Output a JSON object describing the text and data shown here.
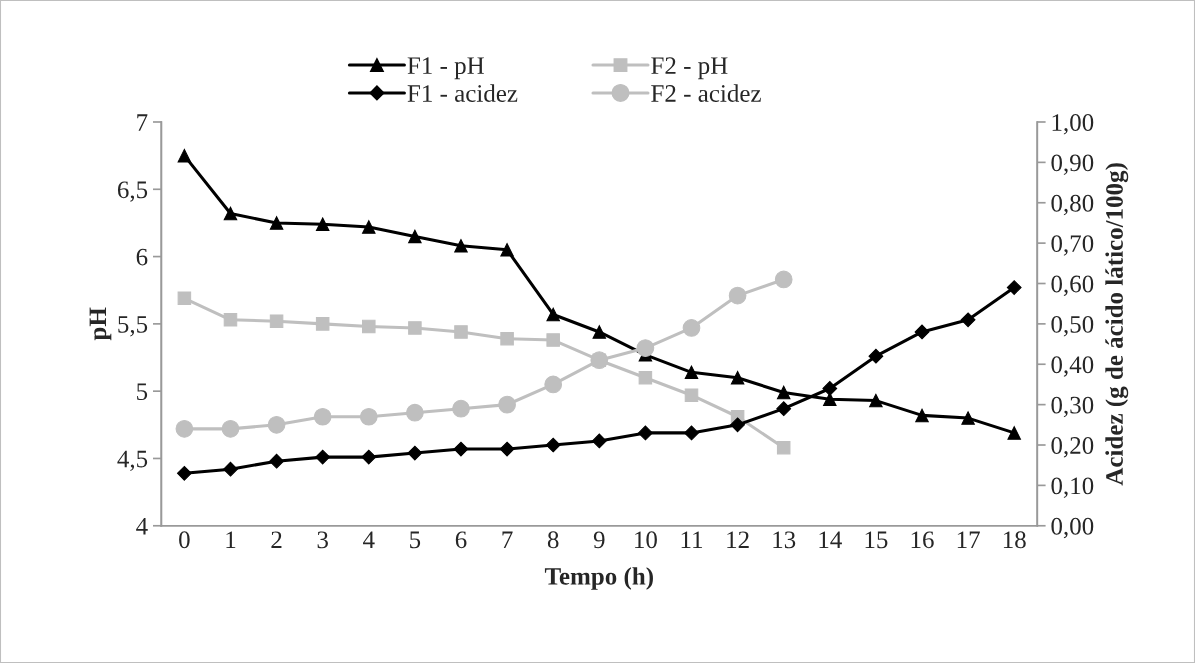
{
  "chart_data": {
    "type": "line",
    "xlabel": "Tempo (h)",
    "ylabel": "pH",
    "y2label": "Acidez (g de ácido lático/100g)",
    "categories": [
      "0",
      "1",
      "2",
      "3",
      "4",
      "5",
      "6",
      "7",
      "8",
      "9",
      "10",
      "11",
      "12",
      "13",
      "14",
      "15",
      "16",
      "17",
      "18"
    ],
    "series": [
      {
        "name": "F1 - pH",
        "color": "#000000",
        "marker": "triangle",
        "axis": "y",
        "values": [
          6.75,
          6.32,
          6.25,
          6.24,
          6.22,
          6.15,
          6.08,
          6.05,
          5.57,
          5.44,
          5.27,
          5.14,
          5.1,
          4.99,
          4.94,
          4.93,
          4.82,
          4.8,
          4.69
        ]
      },
      {
        "name": "F2 - pH",
        "color": "#bfbfbf",
        "marker": "square",
        "axis": "y",
        "values": [
          5.69,
          5.53,
          5.52,
          5.5,
          5.48,
          5.47,
          5.44,
          5.39,
          5.38,
          5.23,
          5.1,
          4.97,
          4.81,
          4.58,
          null,
          null,
          null,
          null,
          null
        ]
      },
      {
        "name": "F1 - acidez",
        "color": "#000000",
        "marker": "diamond",
        "axis": "y2",
        "values": [
          0.13,
          0.14,
          0.16,
          0.17,
          0.17,
          0.18,
          0.19,
          0.19,
          0.2,
          0.21,
          0.23,
          0.23,
          0.25,
          0.29,
          0.34,
          0.42,
          0.48,
          0.51,
          0.59
        ]
      },
      {
        "name": "F2 - acidez",
        "color": "#bfbfbf",
        "marker": "circle",
        "axis": "y2",
        "values": [
          0.24,
          0.24,
          0.25,
          0.27,
          0.27,
          0.28,
          0.29,
          0.3,
          0.35,
          0.41,
          0.44,
          0.49,
          0.57,
          0.61,
          null,
          null,
          null,
          null,
          null
        ]
      }
    ],
    "ylim": [
      4,
      7
    ],
    "yticks": [
      4,
      {
        "value": 4.5,
        "label": "4,5"
      },
      5,
      {
        "value": 5.5,
        "label": "5,5"
      },
      6,
      {
        "value": 6.5,
        "label": "6,5"
      },
      7
    ],
    "y2lim": [
      0,
      1
    ],
    "y2ticks": [
      {
        "value": 0,
        "label": "0,00"
      },
      {
        "value": 0.1,
        "label": "0,10"
      },
      {
        "value": 0.2,
        "label": "0,20"
      },
      {
        "value": 0.3,
        "label": "0,30"
      },
      {
        "value": 0.4,
        "label": "0,40"
      },
      {
        "value": 0.5,
        "label": "0,50"
      },
      {
        "value": 0.6,
        "label": "0,60"
      },
      {
        "value": 0.7,
        "label": "0,70"
      },
      {
        "value": 0.8,
        "label": "0,80"
      },
      {
        "value": 0.9,
        "label": "0,90"
      },
      {
        "value": 1,
        "label": "1,00"
      }
    ],
    "grid": false,
    "legend": "top",
    "line_style": "solid"
  }
}
